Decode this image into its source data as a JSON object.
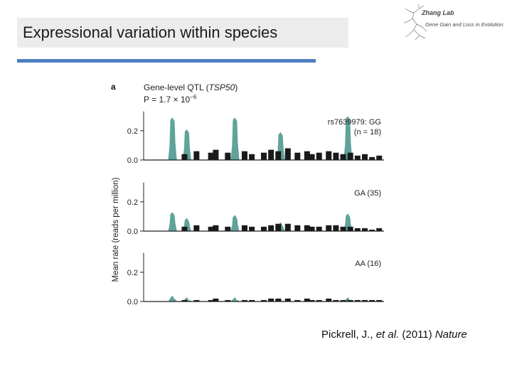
{
  "slide": {
    "title": "Expressional variation within species",
    "logo_title": "Zhang Lab",
    "logo_subtitle": "Gene Gain and Loss in Evolution",
    "citation_authors": "Pickrell, J., ",
    "citation_etal": "et al.",
    "citation_year": " (2011) ",
    "citation_journal": "Nature"
  },
  "colors": {
    "teal": "#5fa39c",
    "black": "#1a1a1a",
    "axis": "#222222",
    "title_rule": "#4f7fbf"
  },
  "chart_data": {
    "type": "area",
    "panel_letter": "a",
    "title": "Gene-level QTL (TSP50)",
    "title_gene": "TSP50",
    "pvalue_label": "P = 1.7 × 10",
    "pvalue_exponent": "−6",
    "ylabel": "Mean rate (reads per million)",
    "ylim": [
      0,
      0.35
    ],
    "yticks": [
      0.0,
      0.2
    ],
    "ytick_labels": [
      "0.0",
      "0.2"
    ],
    "x_positions": [
      0.17,
      0.22,
      0.28,
      0.3,
      0.35,
      0.42,
      0.45,
      0.5,
      0.53,
      0.56,
      0.6,
      0.64,
      0.68,
      0.7,
      0.73,
      0.77,
      0.8,
      0.83,
      0.86,
      0.89,
      0.92,
      0.95,
      0.98
    ],
    "panels": [
      {
        "genotype": "rs7639979: GG",
        "n_label": "(n = 18)",
        "teal_peaks": [
          [
            0.12,
            0.29
          ],
          [
            0.18,
            0.21
          ],
          [
            0.38,
            0.29
          ],
          [
            0.57,
            0.19
          ],
          [
            0.85,
            0.3
          ]
        ],
        "black_bins": [
          0.04,
          0.06,
          0.05,
          0.07,
          0.05,
          0.06,
          0.04,
          0.05,
          0.07,
          0.06,
          0.08,
          0.05,
          0.06,
          0.04,
          0.05,
          0.06,
          0.05,
          0.04,
          0.05,
          0.03,
          0.04,
          0.02,
          0.03
        ]
      },
      {
        "genotype": "GA (35)",
        "n_label": "",
        "teal_peaks": [
          [
            0.12,
            0.13
          ],
          [
            0.18,
            0.09
          ],
          [
            0.38,
            0.11
          ],
          [
            0.57,
            0.06
          ],
          [
            0.85,
            0.12
          ]
        ],
        "black_bins": [
          0.03,
          0.04,
          0.03,
          0.04,
          0.03,
          0.04,
          0.03,
          0.03,
          0.04,
          0.05,
          0.05,
          0.04,
          0.04,
          0.03,
          0.03,
          0.04,
          0.04,
          0.03,
          0.03,
          0.02,
          0.02,
          0.01,
          0.02
        ]
      },
      {
        "genotype": "AA (16)",
        "n_label": "",
        "teal_peaks": [
          [
            0.12,
            0.04
          ],
          [
            0.18,
            0.03
          ],
          [
            0.38,
            0.03
          ],
          [
            0.57,
            0.02
          ],
          [
            0.85,
            0.03
          ]
        ],
        "black_bins": [
          0.01,
          0.01,
          0.01,
          0.02,
          0.01,
          0.01,
          0.01,
          0.01,
          0.02,
          0.02,
          0.02,
          0.01,
          0.02,
          0.01,
          0.01,
          0.02,
          0.01,
          0.01,
          0.01,
          0.01,
          0.01,
          0.01,
          0.01
        ]
      }
    ]
  }
}
